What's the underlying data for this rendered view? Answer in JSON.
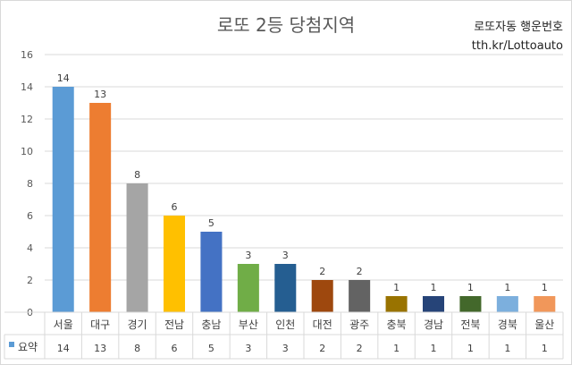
{
  "chart_data": {
    "type": "bar",
    "title": "로또 2등 당첨지역",
    "annotations": [
      "로또자동 행운번호",
      "tth.kr/Lottoauto"
    ],
    "categories": [
      "서울",
      "대구",
      "경기",
      "전남",
      "충남",
      "부산",
      "인천",
      "대전",
      "광주",
      "충북",
      "경남",
      "전북",
      "경북",
      "울산"
    ],
    "series": [
      {
        "name": "요약",
        "values": [
          14,
          13,
          8,
          6,
          5,
          3,
          3,
          2,
          2,
          1,
          1,
          1,
          1,
          1
        ],
        "colors": [
          "#5b9bd5",
          "#ed7d31",
          "#a5a5a5",
          "#ffc000",
          "#4472c4",
          "#70ad47",
          "#255e91",
          "#9e480e",
          "#636363",
          "#997300",
          "#264478",
          "#43682b",
          "#7cafdd",
          "#f1975a"
        ]
      }
    ],
    "ylim": [
      0,
      16
    ],
    "yticks": [
      0,
      2,
      4,
      6,
      8,
      10,
      12,
      14,
      16
    ],
    "grid": true,
    "data_labels": true,
    "data_table": true,
    "legend_key_color": "#5b9bd5"
  }
}
